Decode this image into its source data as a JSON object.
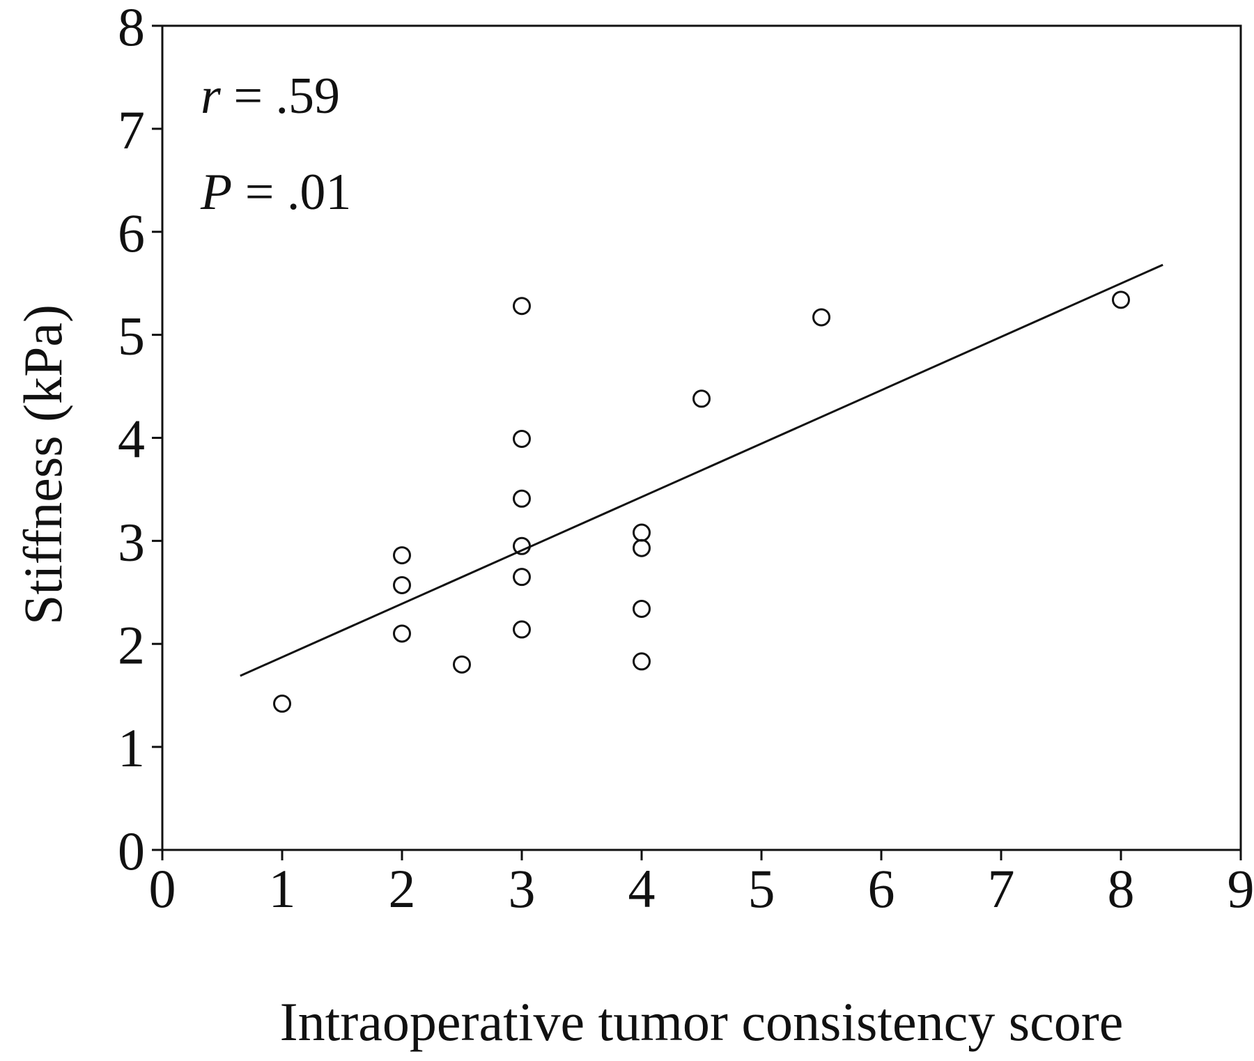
{
  "chart_data": {
    "type": "scatter",
    "title": "",
    "xlabel": "Intraoperative tumor consistency score",
    "ylabel": "Stiffness (kPa)",
    "xlim": [
      0,
      9
    ],
    "ylim": [
      0,
      8
    ],
    "xticks": [
      "0",
      "1",
      "2",
      "3",
      "4",
      "5",
      "6",
      "7",
      "8",
      "9"
    ],
    "yticks": [
      "0",
      "1",
      "2",
      "3",
      "4",
      "5",
      "6",
      "7",
      "8"
    ],
    "grid": false,
    "legend": "none",
    "annotations": [
      {
        "symbol": "r",
        "text": " = .59"
      },
      {
        "symbol": "P",
        "text": " = .01"
      }
    ],
    "series": [
      {
        "marker": "open-circle",
        "points": [
          {
            "x": 1,
            "y": 1.42
          },
          {
            "x": 2,
            "y": 2.86
          },
          {
            "x": 2,
            "y": 2.57
          },
          {
            "x": 2,
            "y": 2.1
          },
          {
            "x": 2.5,
            "y": 1.8
          },
          {
            "x": 3,
            "y": 5.28
          },
          {
            "x": 3,
            "y": 3.99
          },
          {
            "x": 3,
            "y": 3.41
          },
          {
            "x": 3,
            "y": 2.95
          },
          {
            "x": 3,
            "y": 2.65
          },
          {
            "x": 3,
            "y": 2.14
          },
          {
            "x": 4,
            "y": 3.08
          },
          {
            "x": 4,
            "y": 2.93
          },
          {
            "x": 4,
            "y": 2.34
          },
          {
            "x": 4,
            "y": 1.83
          },
          {
            "x": 4.5,
            "y": 4.38
          },
          {
            "x": 5.5,
            "y": 5.17
          },
          {
            "x": 8,
            "y": 5.34
          }
        ]
      }
    ],
    "fit_line": {
      "x": [
        0.65,
        8.35
      ],
      "y": [
        1.69,
        5.68
      ]
    },
    "colors": {
      "axis": "#111111",
      "marker": "#111111",
      "line": "#111111",
      "background": "#ffffff"
    }
  }
}
